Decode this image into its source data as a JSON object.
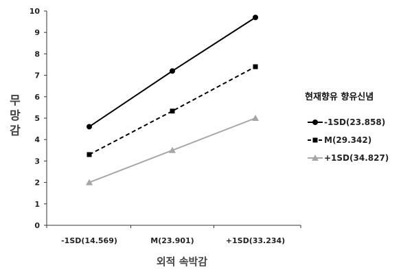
{
  "chart_data": {
    "type": "line",
    "categories": [
      "-1SD(14.569)",
      "M(23.901)",
      "+1SD(33.234)"
    ],
    "series": [
      {
        "name": "-1SD(23.858)",
        "values": [
          4.6,
          7.2,
          9.7
        ],
        "color": "#000000",
        "dash": "solid",
        "marker": "circle"
      },
      {
        "name": "M(29.342)",
        "values": [
          3.3,
          5.33,
          7.4
        ],
        "color": "#000000",
        "dash": "dashed",
        "marker": "square"
      },
      {
        "name": "+1SD(34.827)",
        "values": [
          2.0,
          3.5,
          5.0
        ],
        "color": "#a6a6a6",
        "dash": "solid",
        "marker": "triangle"
      }
    ],
    "xlabel": "외적 속박감",
    "ylabel": "무망감",
    "legend_title": "현재향유 향유신념",
    "ylim": [
      0,
      10
    ],
    "yticks": [
      "0",
      "1",
      "2",
      "3",
      "4",
      "5",
      "6",
      "7",
      "8",
      "9",
      "10"
    ],
    "grid": false,
    "legend_position": "right"
  }
}
